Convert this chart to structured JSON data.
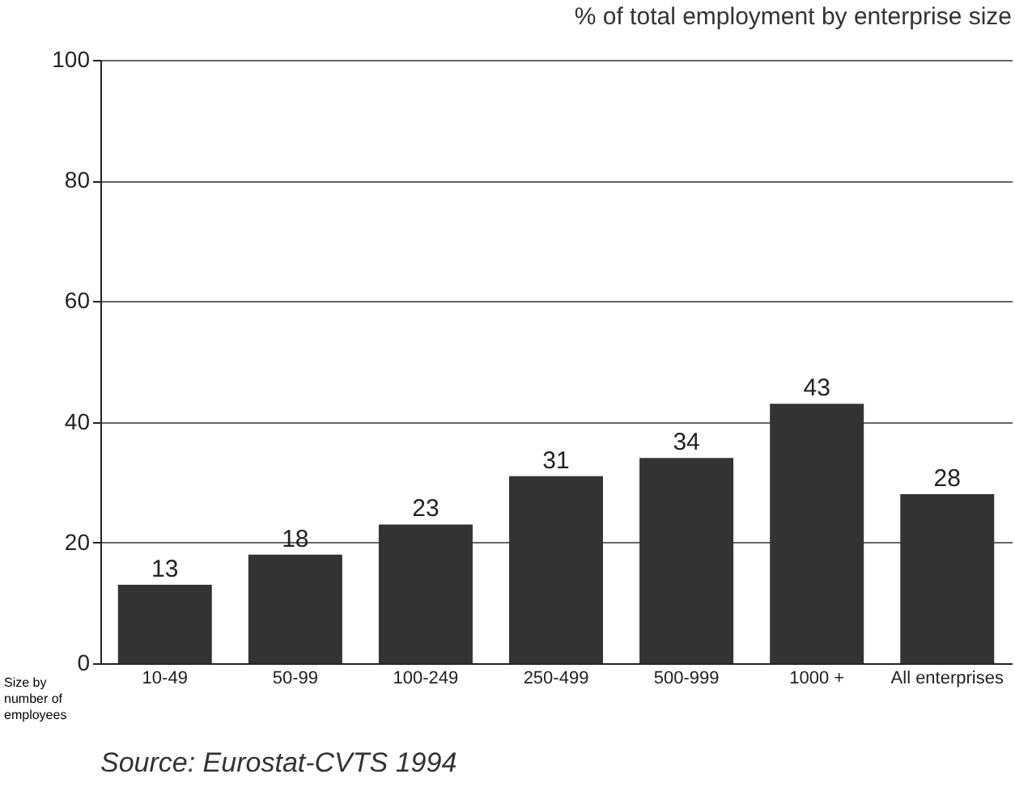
{
  "chart_data": {
    "type": "bar",
    "title": "% of total employment by enterprise size",
    "xlabel": "Size by number of employees",
    "categories": [
      "10-49",
      "50-99",
      "100-249",
      "250-499",
      "500-999",
      "1000 +",
      "All enterprises"
    ],
    "values": [
      13,
      18,
      23,
      31,
      34,
      43,
      28
    ],
    "color": "#333333",
    "ylim": [
      0,
      100
    ],
    "yticks": [
      0,
      20,
      40,
      60,
      80,
      100
    ],
    "grid": "y",
    "data_labels": true,
    "annotations": [
      "Source: Eurostat-CVTS 1994"
    ]
  }
}
